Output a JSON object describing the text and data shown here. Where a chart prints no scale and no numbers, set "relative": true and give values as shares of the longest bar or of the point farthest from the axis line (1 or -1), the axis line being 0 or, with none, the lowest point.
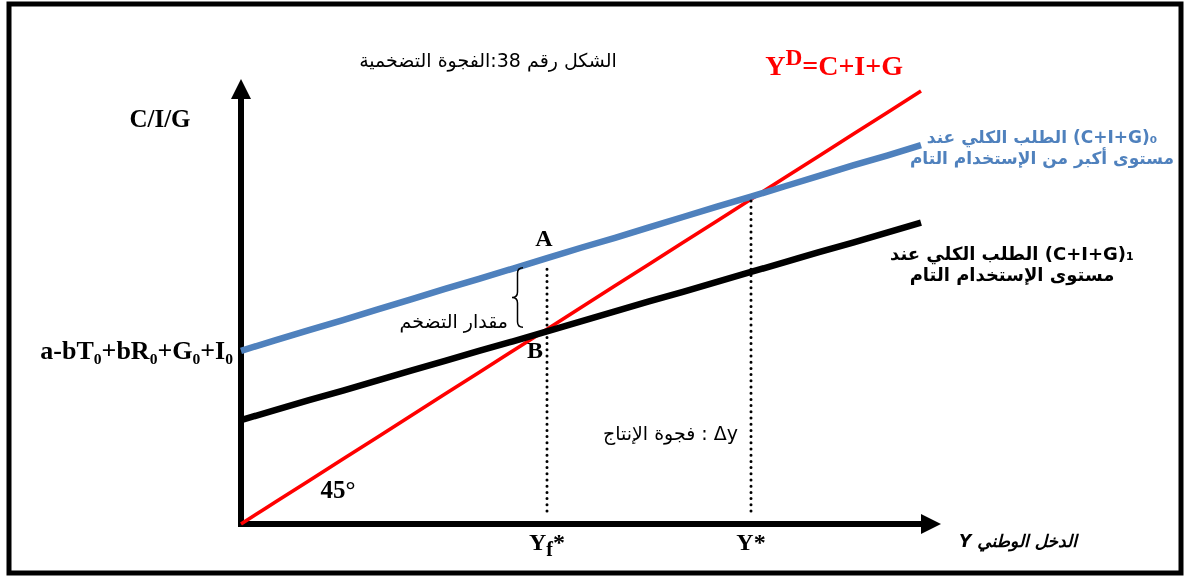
{
  "chart_data": {
    "type": "line",
    "title": "الشكل رقم 38:الفجوة التضخمية",
    "xlabel": "الدخل الوطني Y",
    "ylabel": "C/I/G",
    "relative": true,
    "legend": false,
    "marker": "none",
    "categories": [
      null,
      null,
      null,
      null,
      null,
      null,
      null,
      null,
      null,
      "Y$_{f}$*",
      null,
      null,
      null,
      null,
      null,
      "Y*",
      null,
      null,
      null,
      null,
      null
    ],
    "series": [
      {
        "name": "Y$^{D}$=C+I+G",
        "color": "#ff0000",
        "values": [
          0,
          0.05,
          0.1,
          0.15,
          0.2,
          0.25,
          0.3,
          0.35,
          0.4,
          0.45,
          0.5,
          0.55,
          0.6,
          0.65,
          0.7,
          0.75,
          0.8,
          0.85,
          0.9,
          0.95,
          1
        ]
      },
      {
        "name": "(C+I+G)₀ الطلب الكلي عند مستوى أكبر من الإستخدام التام",
        "color": "#4f81bd",
        "values": [
          0.4,
          0.424,
          0.448,
          0.471,
          0.495,
          0.519,
          0.543,
          0.566,
          0.59,
          0.614,
          0.638,
          0.661,
          0.685,
          0.709,
          0.733,
          0.756,
          0.78,
          0.804,
          0.828,
          0.851,
          0.875
        ]
      },
      {
        "name": "(C+I+G)₁ الطلب الكلي عند مستوى الإستخدام التام",
        "color": "#000000",
        "values": [
          0.24,
          0.263,
          0.286,
          0.308,
          0.331,
          0.354,
          0.377,
          0.4,
          0.422,
          0.445,
          0.468,
          0.491,
          0.514,
          0.536,
          0.559,
          0.582,
          0.605,
          0.628,
          0.65,
          0.673,
          0.696
        ]
      },
      {
        "color": "#000000",
        "line_style": "dotted",
        "x": [
          "Y$_{f}$*",
          "Y$_{f}$*"
        ],
        "values": [
          0.03,
          0.59
        ]
      },
      {
        "color": "#000000",
        "line_style": "dotted",
        "x": [
          "Y*",
          "Y*"
        ],
        "values": [
          0.03,
          0.76
        ]
      }
    ],
    "annotations": [
      {
        "text": "A",
        "y": 0.61
      },
      {
        "text": "B",
        "y": 0.45
      },
      "مقدار التضخم",
      "45°",
      "a-bT₀+bR₀+G₀+I₀",
      "Δy : فجوة الإنتاج"
    ]
  }
}
